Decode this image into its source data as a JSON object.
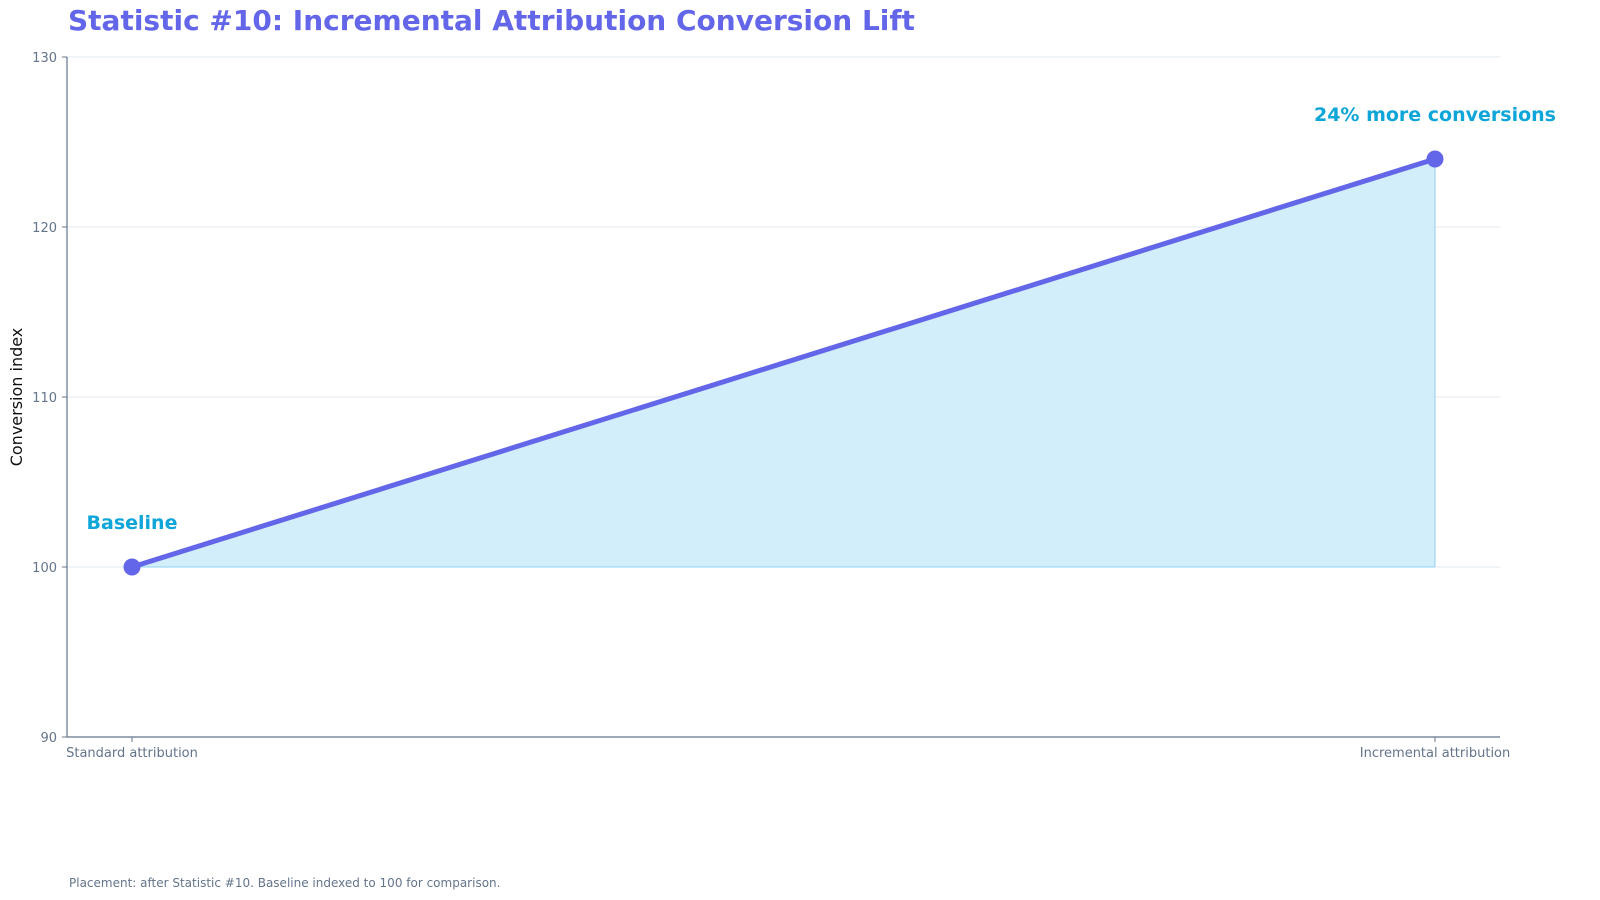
{
  "chart_data": {
    "type": "area",
    "title": "Statistic #10: Incremental Attribution Conversion Lift",
    "ylabel": "Conversion index",
    "xlabel": "",
    "categories": [
      "Standard attribution",
      "Incremental attribution"
    ],
    "values": [
      100,
      124
    ],
    "baseline": 100,
    "ylim": [
      90,
      130
    ],
    "yticks": [
      90,
      100,
      110,
      120,
      130
    ],
    "grid": true,
    "annotations": [
      {
        "text": "Baseline",
        "category_index": 0
      },
      {
        "text": "24% more conversions",
        "category_index": 1
      }
    ],
    "footnote": "Placement: after Statistic #10. Baseline indexed to 100 for comparison."
  },
  "colors": {
    "title": "#6366e8",
    "line": "#6366e8",
    "fill": "#d3eefb",
    "fill_edge": "#8fd0f0",
    "annotation": "#0ea5d9",
    "grid": "#e2e8f0",
    "axis": "#64748b",
    "tick_text": "#64748b"
  }
}
